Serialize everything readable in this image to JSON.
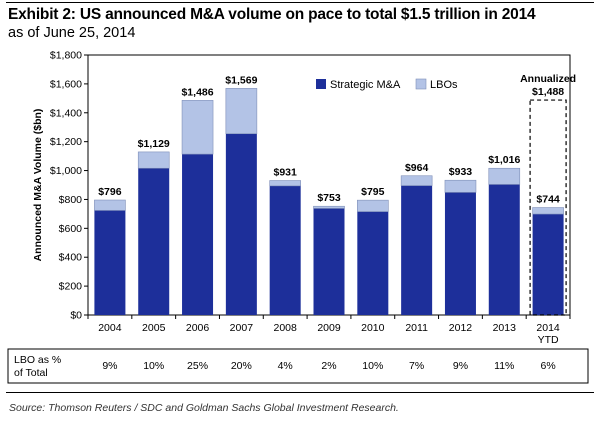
{
  "header": {
    "title": "Exhibit 2: US announced M&A volume on pace to total $1.5 trillion in 2014",
    "subtitle": "as of June 25, 2014"
  },
  "footer": {
    "source": "Source: Thomson Reuters / SDC and Goldman Sachs Global Investment Research."
  },
  "colors": {
    "strategic": "#1d2f9a",
    "lbo": "#b3c3e6",
    "bar_outline": "#7f8fb8"
  },
  "chart_data": {
    "type": "bar",
    "stacked": true,
    "categories": [
      "2004",
      "2005",
      "2006",
      "2007",
      "2008",
      "2009",
      "2010",
      "2011",
      "2012",
      "2013",
      "2014"
    ],
    "category_sublabels": [
      "",
      "",
      "",
      "",
      "",
      "",
      "",
      "",
      "",
      "",
      "YTD"
    ],
    "series": [
      {
        "name": "Strategic M&A",
        "values": [
          724,
          1016,
          1114,
          1255,
          894,
          738,
          716,
          896,
          849,
          904,
          699
        ]
      },
      {
        "name": "LBOs",
        "values": [
          72,
          113,
          372,
          314,
          37,
          15,
          79,
          68,
          84,
          112,
          45
        ]
      }
    ],
    "totals": [
      796,
      1129,
      1486,
      1569,
      931,
      753,
      795,
      964,
      933,
      1016,
      744
    ],
    "total_labels": [
      "$796",
      "$1,129",
      "$1,486",
      "$1,569",
      "$931",
      "$753",
      "$795",
      "$964",
      "$933",
      "$1,016",
      "$744"
    ],
    "annualized": {
      "label_line1": "Annualized",
      "label_line2": "$1,488",
      "value": 1488,
      "category": "2014"
    },
    "ylabel": "Announced M&A Volume ($bn)",
    "xlabel": "",
    "ylim": [
      0,
      1800
    ],
    "yticks": [
      0,
      200,
      400,
      600,
      800,
      1000,
      1200,
      1400,
      1600,
      1800
    ],
    "ytick_labels": [
      "$0",
      "$200",
      "$400",
      "$600",
      "$800",
      "$1,000",
      "$1,200",
      "$1,400",
      "$1,600",
      "$1,800"
    ],
    "grid": false,
    "legend_position": "top-right",
    "table": {
      "row_label_line1": "LBO as %",
      "row_label_line2": "of Total",
      "values": [
        "9%",
        "10%",
        "25%",
        "20%",
        "4%",
        "2%",
        "10%",
        "7%",
        "9%",
        "11%",
        "6%"
      ]
    }
  }
}
